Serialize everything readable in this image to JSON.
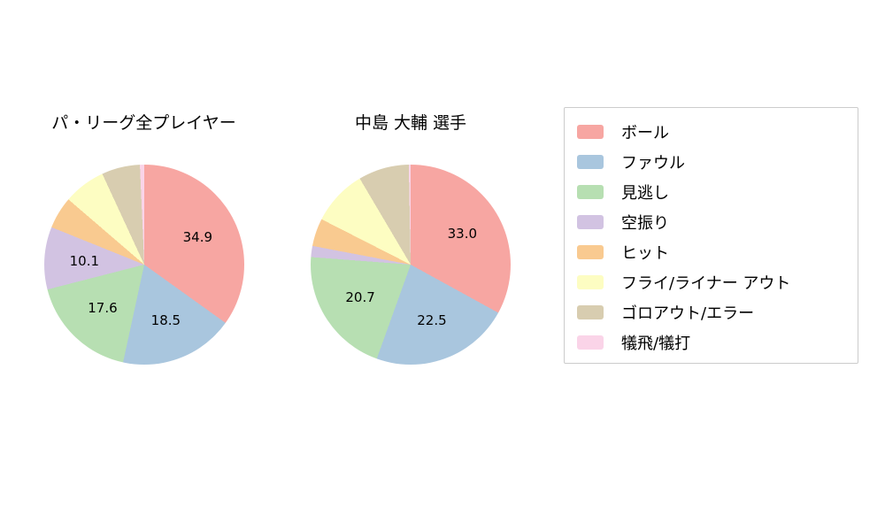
{
  "chart_data": [
    {
      "type": "pie",
      "title": "パ・リーグ全プレイヤー",
      "categories": [
        "ボール",
        "ファウル",
        "見逃し",
        "空振り",
        "ヒット",
        "フライ/ライナー アウト",
        "ゴロアウト/エラー",
        "犠飛/犠打"
      ],
      "values": [
        34.9,
        18.5,
        17.6,
        10.1,
        5.2,
        6.8,
        6.2,
        0.7
      ],
      "shown_value_labels": [
        "34.9",
        "18.5",
        "17.6",
        "10.1"
      ],
      "label_threshold": 10,
      "start_angle": "top",
      "direction": "clockwise"
    },
    {
      "type": "pie",
      "title": "中島 大輔  選手",
      "categories": [
        "ボール",
        "ファウル",
        "見逃し",
        "空振り",
        "ヒット",
        "フライ/ライナー アウト",
        "ゴロアウト/エラー",
        "犠飛/犠打"
      ],
      "values": [
        33.0,
        22.5,
        20.7,
        1.8,
        4.5,
        9.0,
        8.2,
        0.3
      ],
      "shown_value_labels": [
        "33.0",
        "22.5",
        "20.7"
      ],
      "label_threshold": 10,
      "start_angle": "top",
      "direction": "clockwise"
    }
  ],
  "colors": {
    "ball": "#f7a6a2",
    "foul": "#a9c6de",
    "called_strike": "#b7dfb2",
    "swinging_strike": "#d2c3e2",
    "hit": "#f9ca90",
    "fly_liner_out": "#fdfdc2",
    "ground_out_error": "#d8cdb0",
    "sacrifice": "#fad4e8"
  },
  "legend": {
    "position": "right",
    "items": [
      {
        "label": "ボール",
        "color": "#f7a6a2"
      },
      {
        "label": "ファウル",
        "color": "#a9c6de"
      },
      {
        "label": "見逃し",
        "color": "#b7dfb2"
      },
      {
        "label": "空振り",
        "color": "#d2c3e2"
      },
      {
        "label": "ヒット",
        "color": "#f9ca90"
      },
      {
        "label": "フライ/ライナー アウト",
        "color": "#fdfdc2"
      },
      {
        "label": "ゴロアウト/エラー",
        "color": "#d8cdb0"
      },
      {
        "label": "犠飛/犠打",
        "color": "#fad4e8"
      }
    ]
  }
}
